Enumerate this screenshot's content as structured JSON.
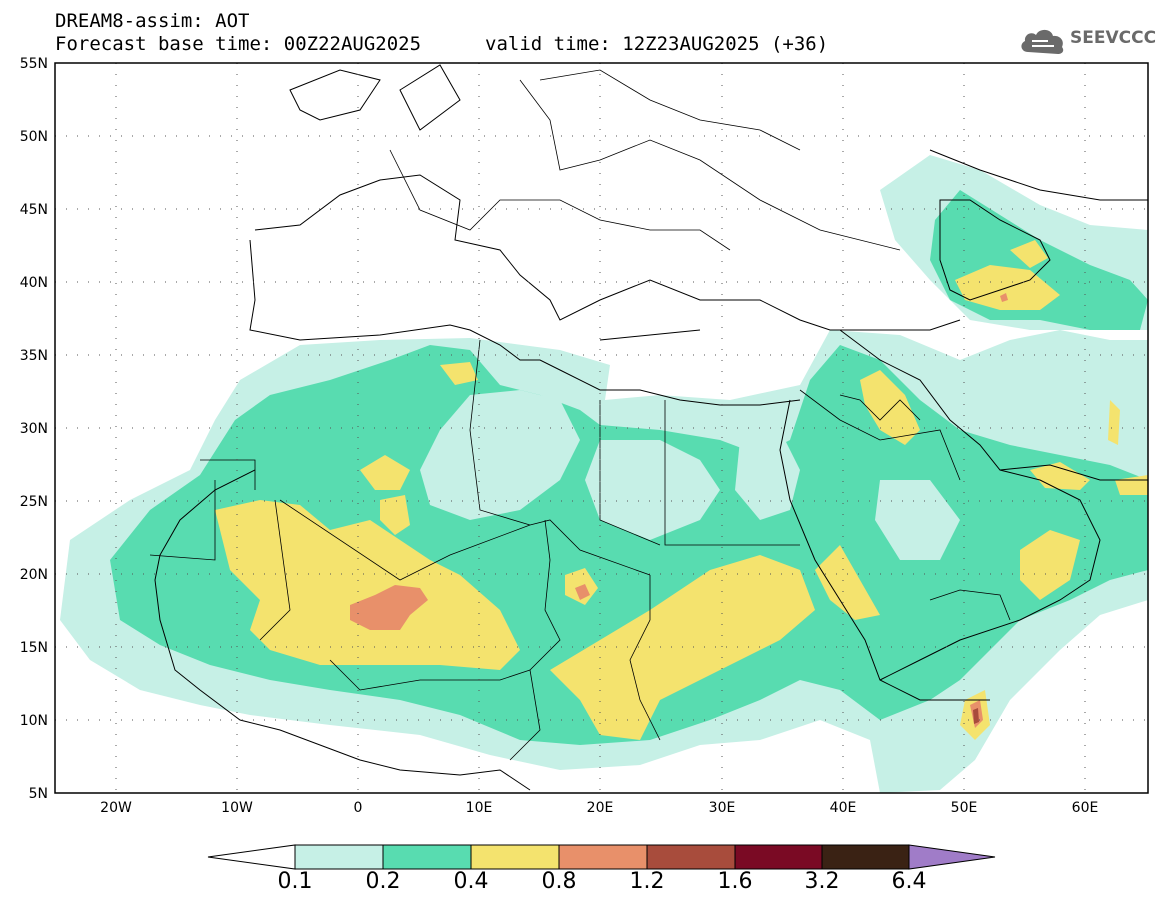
{
  "header": {
    "title": "DREAM8-assim: AOT",
    "base_time": "Forecast base time: 00Z22AUG2025",
    "valid_time": "valid time: 12Z23AUG2025 (+36)"
  },
  "logo": {
    "text": "SEEVCCC",
    "icon": "cloud-icon",
    "color": "#6a6a6a"
  },
  "map": {
    "lat_range": [
      5,
      55
    ],
    "lon_range": [
      -25,
      65
    ],
    "lat_ticks": [
      "5N",
      "10N",
      "15N",
      "20N",
      "25N",
      "30N",
      "35N",
      "40N",
      "45N",
      "50N",
      "55N"
    ],
    "lon_ticks": [
      "20W",
      "10W",
      "0",
      "10E",
      "20E",
      "30E",
      "40E",
      "50E",
      "60E"
    ],
    "grid": "dotted"
  },
  "colorbar": {
    "labels": [
      "0.1",
      "0.2",
      "0.4",
      "0.8",
      "1.2",
      "1.6",
      "3.2",
      "6.4"
    ],
    "colors": [
      "#ffffff",
      "#c6f0e6",
      "#58dcb0",
      "#f4e36e",
      "#e8906a",
      "#a84c3c",
      "#7a0a24",
      "#3a2214",
      "#a07cc8"
    ]
  }
}
